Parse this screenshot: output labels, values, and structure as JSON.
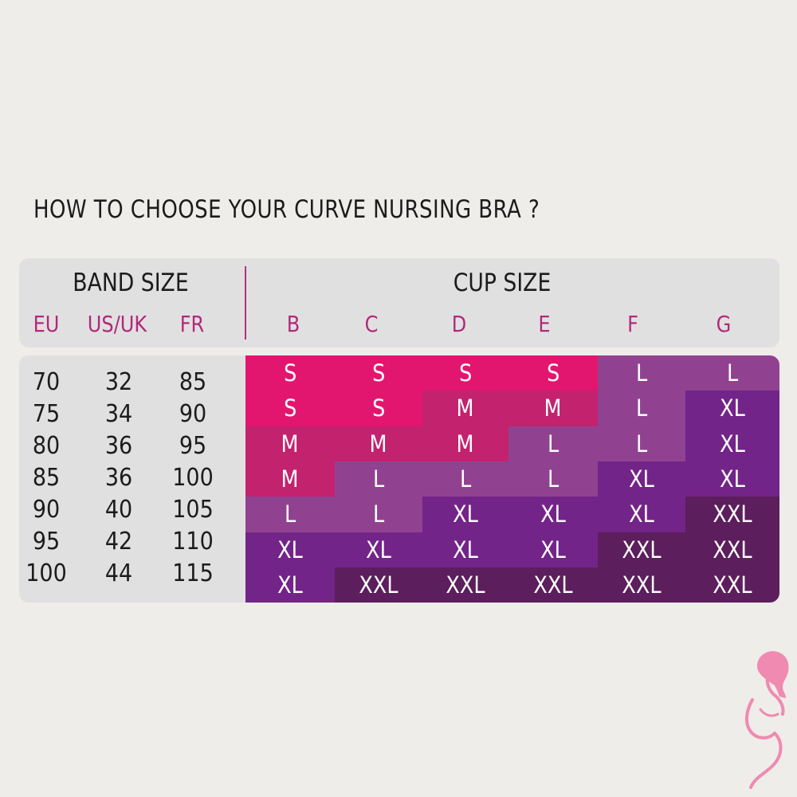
{
  "title": "HOW TO CHOOSE YOUR CURVE NURSING BRA ?",
  "band": {
    "title": "BAND SIZE",
    "columns": [
      "EU",
      "US/UK",
      "FR"
    ],
    "rows": [
      [
        "70",
        "32",
        "85"
      ],
      [
        "75",
        "34",
        "90"
      ],
      [
        "80",
        "36",
        "95"
      ],
      [
        "85",
        "36",
        "100"
      ],
      [
        "90",
        "40",
        "105"
      ],
      [
        "95",
        "42",
        "110"
      ],
      [
        "100",
        "44",
        "115"
      ]
    ]
  },
  "cup": {
    "title": "CUP SIZE",
    "columns": [
      "B",
      "C",
      "D",
      "E",
      "F",
      "G"
    ],
    "rows": [
      [
        "S",
        "S",
        "S",
        "S",
        "L",
        "L"
      ],
      [
        "S",
        "S",
        "M",
        "M",
        "L",
        "XL"
      ],
      [
        "M",
        "M",
        "M",
        "L",
        "L",
        "XL"
      ],
      [
        "M",
        "L",
        "L",
        "L",
        "XL",
        "XL"
      ],
      [
        "L",
        "L",
        "XL",
        "XL",
        "XL",
        "XXL"
      ],
      [
        "XL",
        "XL",
        "XL",
        "XL",
        "XXL",
        "XXL"
      ],
      [
        "XL",
        "XXL",
        "XXL",
        "XXL",
        "XXL",
        "XXL"
      ]
    ]
  },
  "size_colors": {
    "S": "#e3166f",
    "M": "#c3226f",
    "L": "#904291",
    "XL": "#732488",
    "XXL": "#5c1e5c"
  },
  "logo_color": "#f08ab1",
  "logo_icon": "pregnant-woman-logo-icon"
}
